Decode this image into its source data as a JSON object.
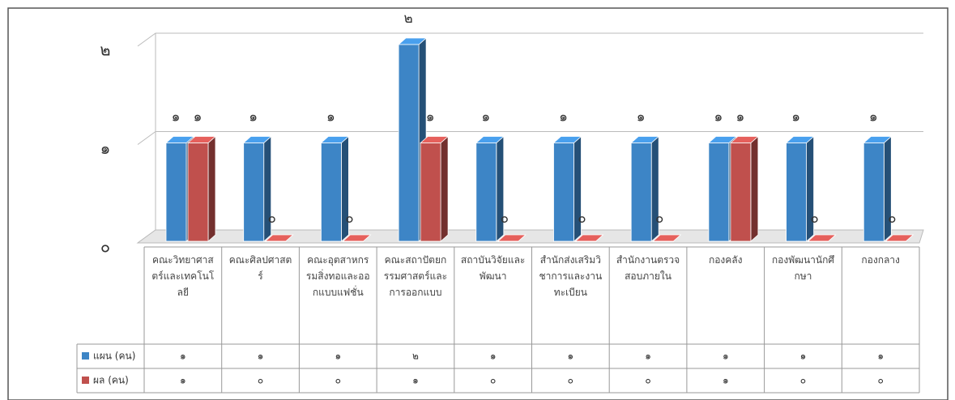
{
  "chart_data": {
    "type": "bar3d",
    "categories": [
      "คณะวิทยาศาสตร์และเทคโนโลยี",
      "คณะศิลปศาสตร์",
      "คณะอุตสาหกรรมสิ่งทอและออกแบบแฟชั่น",
      "คณะสถาปัตยกรรมศาสตร์และการออกแบบ",
      "สถาบันวิจัยและพัฒนา",
      "สำนักส่งเสริมวิชาการและงานทะเบียน",
      "สำนักงานตรวจสอบภายใน",
      "กองคลัง",
      "กองพัฒนานักศึกษา",
      "กองกลาง"
    ],
    "series": [
      {
        "name": "แผน (คน)",
        "color": "#3d85c6",
        "values": [
          1,
          1,
          1,
          2,
          1,
          1,
          1,
          1,
          1,
          1
        ],
        "value_labels": [
          "๑",
          "๑",
          "๑",
          "๒",
          "๑",
          "๑",
          "๑",
          "๑",
          "๑",
          "๑"
        ]
      },
      {
        "name": "ผล (คน)",
        "color": "#c0504d",
        "values": [
          1,
          0,
          0,
          1,
          0,
          0,
          0,
          1,
          0,
          0
        ],
        "value_labels": [
          "๑",
          "๐",
          "๐",
          "๑",
          "๐",
          "๐",
          "๐",
          "๑",
          "๐",
          "๐"
        ]
      }
    ],
    "ylim": [
      0,
      2
    ],
    "yticks": [
      {
        "value": 0,
        "label": "๐"
      },
      {
        "value": 1,
        "label": "๑"
      },
      {
        "value": 2,
        "label": "๒"
      }
    ],
    "grid": true,
    "legend": "table"
  }
}
